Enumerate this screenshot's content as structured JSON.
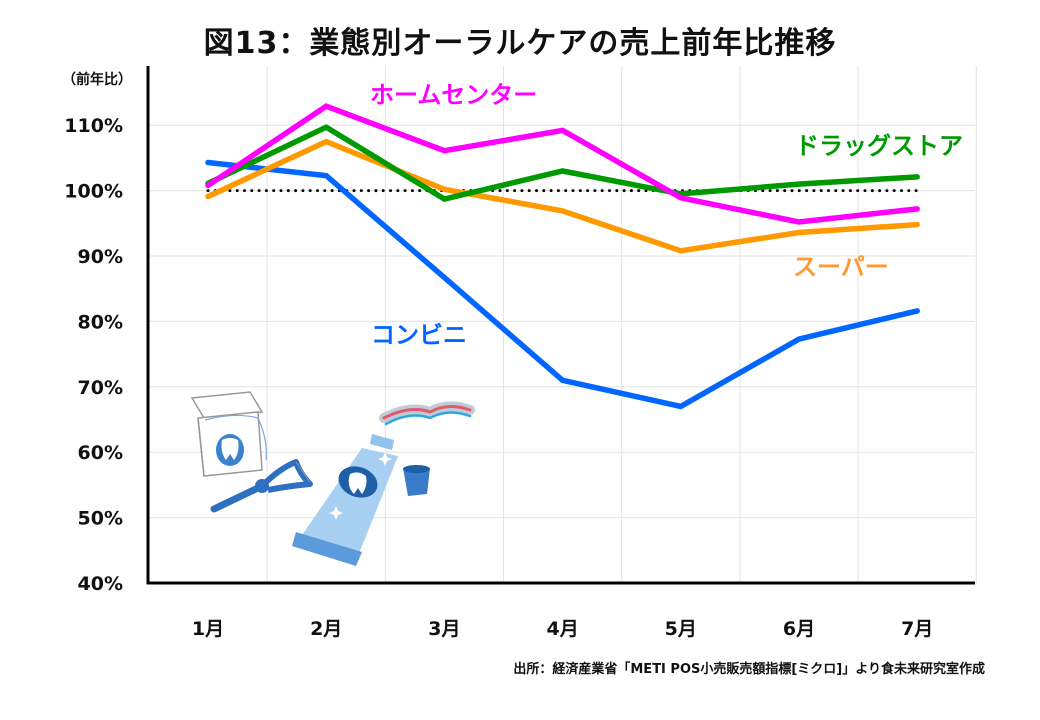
{
  "chart_data": {
    "type": "line",
    "title": "図13：業態別オーラルケアの売上前年比推移",
    "ylabel": "（前年比）",
    "xlabel": "",
    "categories": [
      "1月",
      "2月",
      "3月",
      "4月",
      "5月",
      "6月",
      "7月"
    ],
    "yticks": [
      "40%",
      "50%",
      "60%",
      "70%",
      "80%",
      "90%",
      "100%",
      "110%"
    ],
    "ylim": [
      40,
      119
    ],
    "grid": true,
    "reference_line": {
      "value": 100,
      "style": "dotted",
      "color": "#000000"
    },
    "series": [
      {
        "name": "ホームセンター",
        "color": "#FF00FF",
        "label_color": "#FF00FF",
        "values": [
          100.8,
          112.9,
          106.1,
          109.2,
          98.9,
          95.2,
          97.2
        ]
      },
      {
        "name": "ドラッグストア",
        "color": "#009900",
        "label_color": "#009900",
        "values": [
          101.1,
          109.7,
          98.7,
          103.0,
          99.5,
          101.0,
          102.1
        ]
      },
      {
        "name": "スーパー",
        "color": "#FF9900",
        "label_color": "#FF9933",
        "values": [
          99.1,
          107.5,
          100.2,
          96.9,
          90.8,
          93.6,
          94.8
        ]
      },
      {
        "name": "コンビニ",
        "color": "#0066FF",
        "label_color": "#0066FF",
        "values": [
          104.3,
          102.3,
          86.7,
          71.0,
          67.0,
          77.3,
          81.6
        ]
      }
    ],
    "source": "出所：経済産業省「METI POS小売販売額指標[ミクロ]」より食未来研究室作成"
  },
  "illustration": {
    "items": [
      "dental-floss-icon",
      "floss-pick-icon",
      "toothpaste-tube-icon",
      "toothpaste-cap-icon"
    ]
  }
}
